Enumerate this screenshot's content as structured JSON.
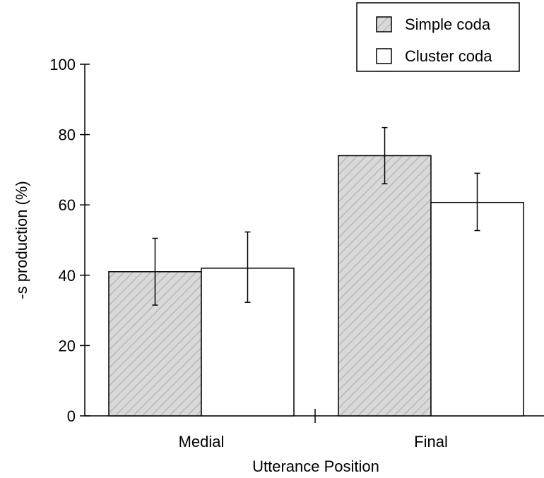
{
  "chart_data": {
    "type": "bar",
    "categories": [
      "Medial",
      "Final"
    ],
    "series": [
      {
        "name": "Simple coda",
        "values": [
          41,
          74
        ],
        "error": [
          [
            31.5,
            50.5
          ],
          [
            66,
            82
          ]
        ],
        "fill": "hatched-gray"
      },
      {
        "name": "Cluster coda",
        "values": [
          42,
          60.7
        ],
        "error": [
          [
            32.3,
            52.3
          ],
          [
            52.7,
            69
          ]
        ],
        "fill": "white"
      }
    ],
    "xlabel": "Utterance Position",
    "ylabel": "-s production (%)",
    "ylim": [
      0,
      100
    ],
    "yticks": [
      "0",
      "20",
      "40",
      "60",
      "80",
      "100"
    ],
    "grid": false,
    "legend_position": "top-right"
  },
  "colors": {
    "simple_fill": "#d9d9d9",
    "hatch": "#b8b8b8",
    "cluster_fill": "#ffffff",
    "stroke": "#000000"
  }
}
